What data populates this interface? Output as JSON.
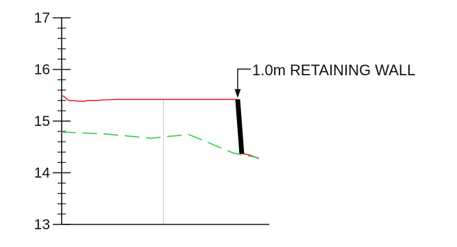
{
  "chart_data": {
    "type": "line",
    "title": "",
    "xlabel": "",
    "ylabel": "",
    "ylim": [
      13,
      17
    ],
    "yticks": [
      13,
      14,
      15,
      16,
      17
    ],
    "y_minor_step": 0.2,
    "series": [
      {
        "role": "finished",
        "color": "#e8262a",
        "style": "solid",
        "x": [
          0,
          4,
          10,
          23,
          30,
          40,
          52,
          62,
          80,
          100,
          110,
          128,
          150,
          180,
          210,
          240,
          255
        ],
        "y": [
          15.5,
          15.47,
          15.4,
          15.39,
          15.38,
          15.4,
          15.4,
          15.41,
          15.42,
          15.42,
          15.42,
          15.42,
          15.42,
          15.42,
          15.42,
          15.42,
          15.42
        ]
      },
      {
        "role": "finished_below_wall",
        "color": "#e8262a",
        "style": "solid",
        "x": [
          262,
          272,
          286
        ],
        "y": [
          14.37,
          14.35,
          14.28
        ]
      },
      {
        "role": "existing",
        "color": "#2ecc40",
        "style": "dashed",
        "x": [
          0,
          65,
          130,
          185,
          250,
          286
        ],
        "y": [
          14.79,
          14.75,
          14.67,
          14.74,
          14.38,
          14.29
        ]
      }
    ],
    "vertical_reference_x": 148,
    "retaining_wall": {
      "top": {
        "x": 256,
        "y": 15.42
      },
      "bottom": {
        "x": 262,
        "y": 14.37
      },
      "color": "#000000"
    },
    "annotation": "1.0m RETAINING WALL"
  }
}
